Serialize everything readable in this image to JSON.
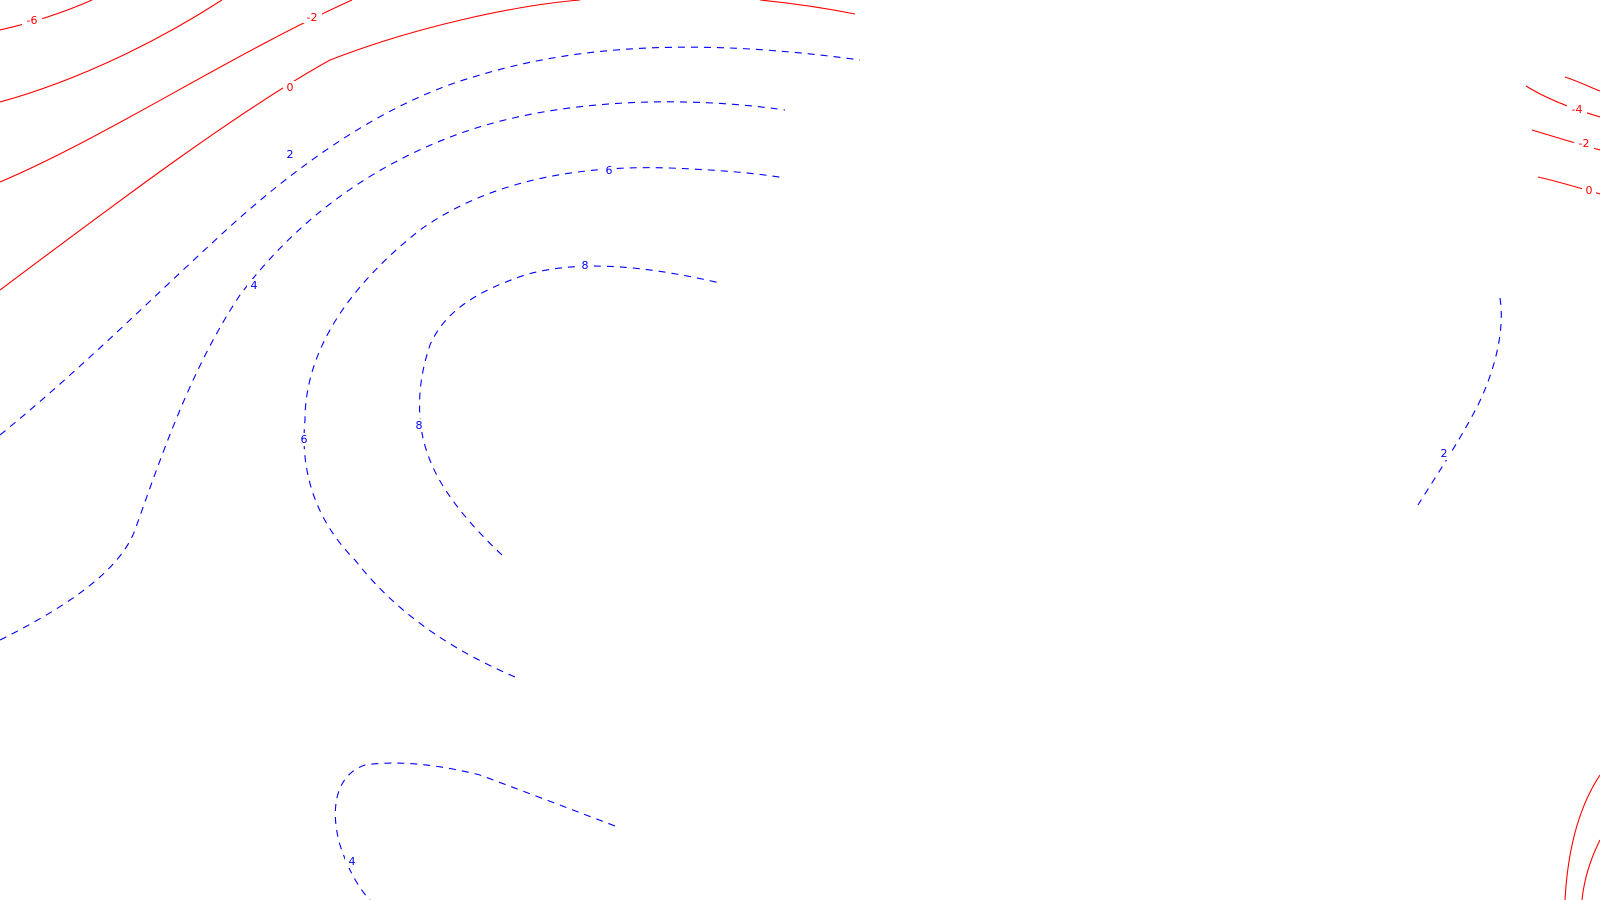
{
  "colors": {
    "background": "#ffffff",
    "negative_contour": "#ff0000",
    "positive_contour": "#0000ff"
  },
  "contour_labels": {
    "l1": "-6",
    "l2": "-2",
    "l3": "0",
    "l4": "2",
    "l5": "4",
    "l6": "6",
    "l7": "8",
    "l8": "8",
    "l9": "6",
    "l10": "-4",
    "l11": "-2",
    "l12": "0",
    "l13": "2",
    "l14": "4"
  }
}
